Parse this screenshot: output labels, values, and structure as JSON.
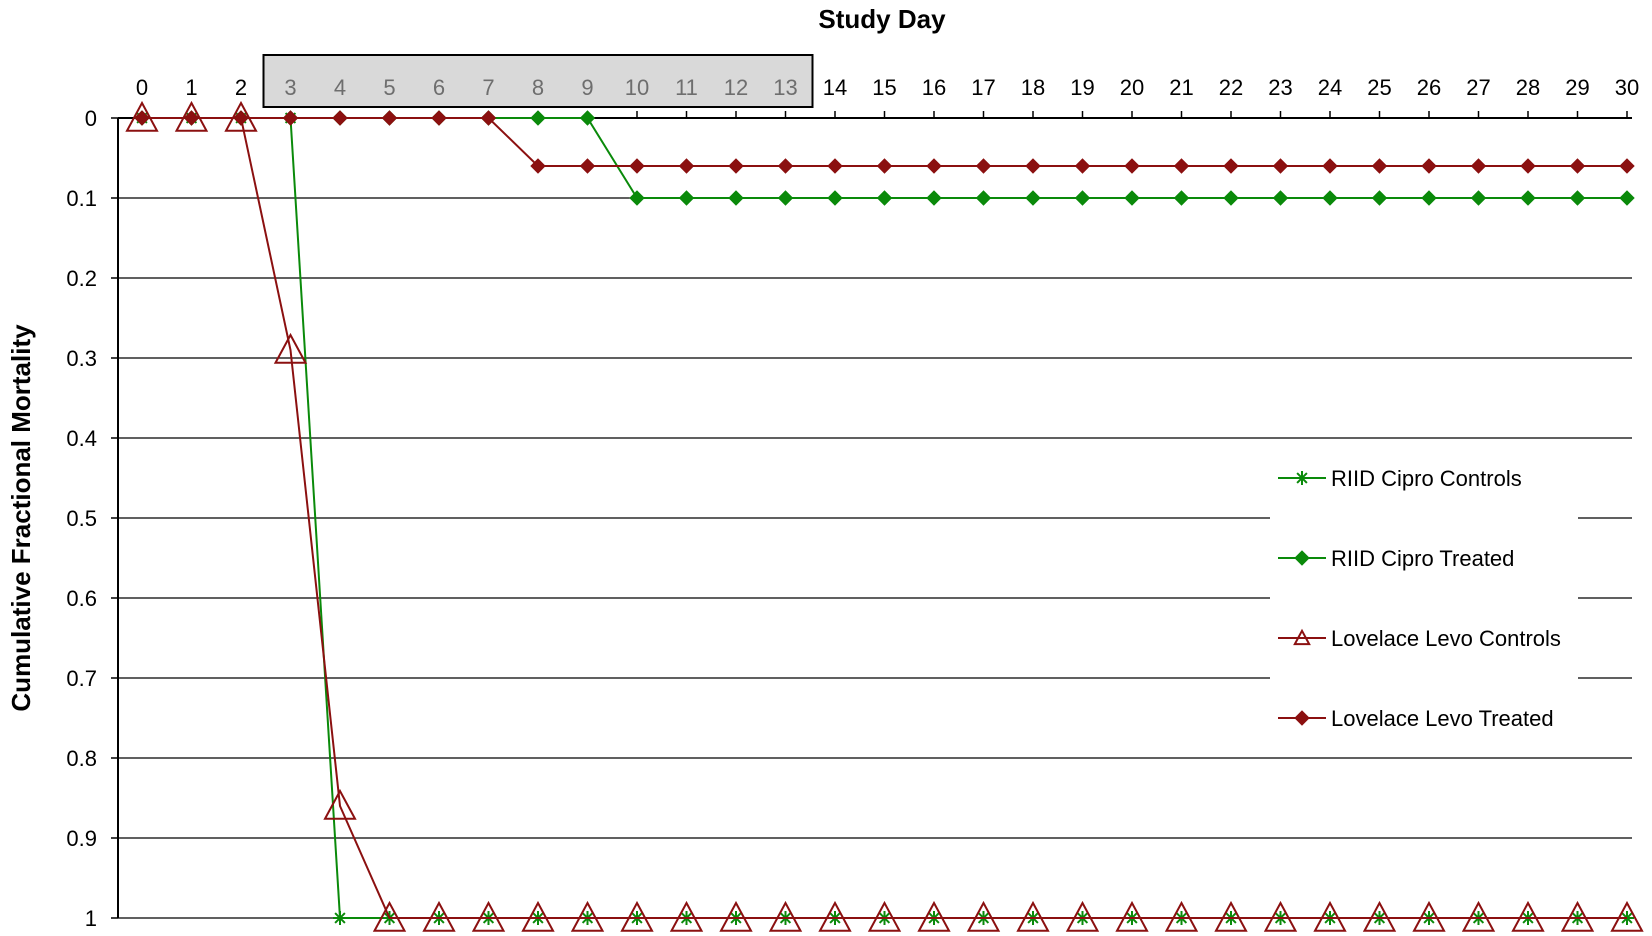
{
  "chart_data": {
    "type": "line",
    "xlabel": "Study Day",
    "ylabel": "Cumulative Fractional Mortality",
    "x": [
      0,
      1,
      2,
      3,
      4,
      5,
      6,
      7,
      8,
      9,
      10,
      11,
      12,
      13,
      14,
      15,
      16,
      17,
      18,
      19,
      20,
      21,
      22,
      23,
      24,
      25,
      26,
      27,
      28,
      29,
      30
    ],
    "xlim": [
      0,
      30
    ],
    "ylim": [
      0,
      1
    ],
    "y_axis_inverted": true,
    "x_axis_position": "top",
    "y_ticks": [
      0,
      0.1,
      0.2,
      0.3,
      0.4,
      0.5,
      0.6,
      0.7,
      0.8,
      0.9,
      1
    ],
    "y_tick_labels": [
      "0",
      "0.1",
      "0.2",
      "0.3",
      "0.4",
      "0.5",
      "0.6",
      "0.7",
      "0.8",
      "0.9",
      "1"
    ],
    "grid": "horizontal",
    "shaded_x_range": [
      3,
      13
    ],
    "legend_position": "right",
    "series": [
      {
        "name": "RIID Cipro Controls",
        "color": "#0a8a0a",
        "marker": "asterisk",
        "values": [
          0,
          0,
          0,
          0,
          1,
          1,
          1,
          1,
          1,
          1,
          1,
          1,
          1,
          1,
          1,
          1,
          1,
          1,
          1,
          1,
          1,
          1,
          1,
          1,
          1,
          1,
          1,
          1,
          1,
          1,
          1
        ]
      },
      {
        "name": "RIID Cipro Treated",
        "color": "#0a8a0a",
        "marker": "diamond",
        "values": [
          0,
          0,
          0,
          0,
          0,
          0,
          0,
          0,
          0,
          0,
          0.1,
          0.1,
          0.1,
          0.1,
          0.1,
          0.1,
          0.1,
          0.1,
          0.1,
          0.1,
          0.1,
          0.1,
          0.1,
          0.1,
          0.1,
          0.1,
          0.1,
          0.1,
          0.1,
          0.1,
          0.1
        ]
      },
      {
        "name": "Lovelace Levo Controls",
        "color": "#8b1010",
        "marker": "triangle-open",
        "values": [
          0,
          0,
          0,
          0.29,
          0.86,
          1,
          1,
          1,
          1,
          1,
          1,
          1,
          1,
          1,
          1,
          1,
          1,
          1,
          1,
          1,
          1,
          1,
          1,
          1,
          1,
          1,
          1,
          1,
          1,
          1,
          1
        ]
      },
      {
        "name": "Lovelace Levo Treated",
        "color": "#8b1010",
        "marker": "diamond",
        "values": [
          0,
          0,
          0,
          0,
          0,
          0,
          0,
          0,
          0.06,
          0.06,
          0.06,
          0.06,
          0.06,
          0.06,
          0.06,
          0.06,
          0.06,
          0.06,
          0.06,
          0.06,
          0.06,
          0.06,
          0.06,
          0.06,
          0.06,
          0.06,
          0.06,
          0.06,
          0.06,
          0.06,
          0.06
        ]
      }
    ]
  }
}
